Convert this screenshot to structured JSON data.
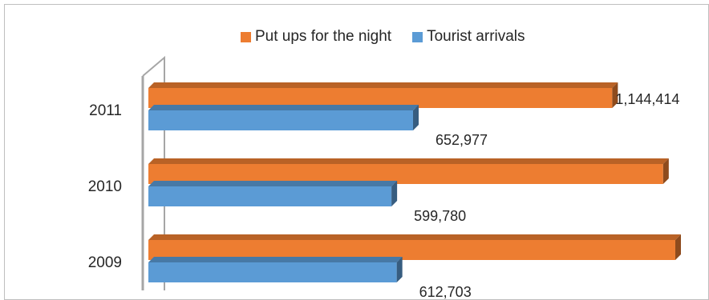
{
  "chart_data": {
    "type": "bar",
    "orientation": "horizontal",
    "style": "3d",
    "categories": [
      "2011",
      "2010",
      "2009"
    ],
    "series": [
      {
        "name": "Put ups for the night",
        "color": "#ed7d31",
        "values": [
          1144414,
          1270000,
          1300000
        ],
        "labels": [
          "1,144,414",
          "",
          ""
        ]
      },
      {
        "name": "Tourist arrivals",
        "color": "#5b9bd5",
        "values": [
          652977,
          599780,
          612703
        ],
        "labels": [
          "652,977",
          "599,780",
          "612,703"
        ]
      }
    ],
    "legend_position": "top",
    "gridlines": false
  }
}
